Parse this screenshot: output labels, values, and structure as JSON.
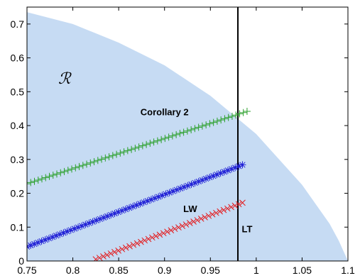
{
  "chart_data": {
    "type": "scatter",
    "title": "",
    "xlabel": "",
    "ylabel": "",
    "xlim": [
      0.75,
      1.1
    ],
    "ylim": [
      0,
      0.75
    ],
    "xticks": [
      "0.75",
      "0.8",
      "0.85",
      "0.9",
      "0.95",
      "1",
      "1.05",
      "1.1"
    ],
    "yticks": [
      "0",
      "0.1",
      "0.2",
      "0.3",
      "0.4",
      "0.5",
      "0.6",
      "0.7"
    ],
    "xtick_values": [
      0.75,
      0.8,
      0.85,
      0.9,
      0.95,
      1.0,
      1.05,
      1.1
    ],
    "ytick_values": [
      0,
      0.1,
      0.2,
      0.3,
      0.4,
      0.5,
      0.6,
      0.7
    ],
    "grid": false,
    "region": {
      "label": "ℛ",
      "color": "#c6dbf3",
      "boundary": [
        [
          0.75,
          0.735
        ],
        [
          0.8,
          0.7
        ],
        [
          0.85,
          0.645
        ],
        [
          0.9,
          0.578
        ],
        [
          0.95,
          0.488
        ],
        [
          1.0,
          0.375
        ],
        [
          1.05,
          0.225
        ],
        [
          1.08,
          0.11
        ],
        [
          1.09,
          0.06
        ],
        [
          1.1,
          0.0
        ]
      ]
    },
    "vertical_line": {
      "x": 0.98,
      "color": "#000000"
    },
    "series": [
      {
        "marker": "plus",
        "color": "#2ca02c",
        "x_start": 0.75,
        "x_end": 0.99,
        "y_start": 0.228,
        "y_end": 0.442,
        "count": 60
      },
      {
        "marker": "star",
        "color": "#1f1fd6",
        "x_start": 0.75,
        "x_end": 0.985,
        "y_start": 0.042,
        "y_end": 0.284,
        "count": 60
      },
      {
        "marker": "x",
        "color": "#e41a1c",
        "x_start": 0.825,
        "x_end": 0.985,
        "y_start": 0.005,
        "y_end": 0.172,
        "count": 40
      }
    ],
    "annotations": [
      {
        "text": "Corollary 2",
        "x": 0.9,
        "y": 0.43
      },
      {
        "text": "LW",
        "x": 0.928,
        "y": 0.145
      },
      {
        "text": "LT",
        "x": 0.99,
        "y": 0.085
      }
    ]
  }
}
